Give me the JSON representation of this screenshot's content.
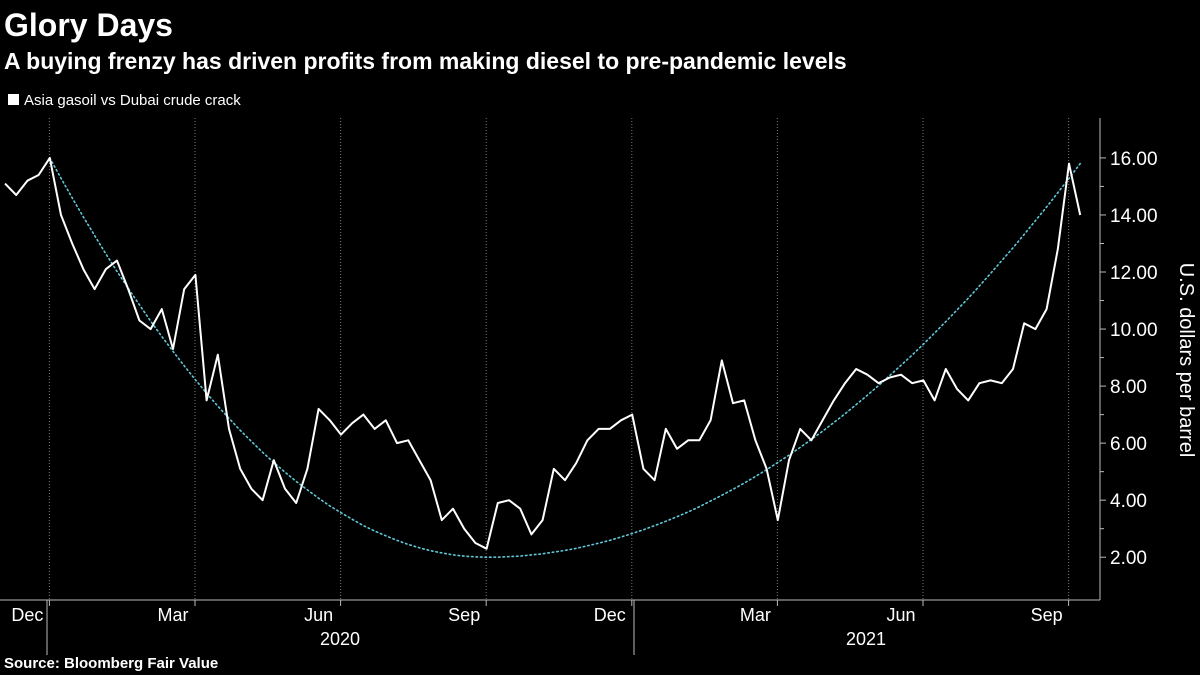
{
  "chart_data": {
    "type": "line",
    "title": "Glory Days",
    "subtitle": "A buying frenzy has driven profits from making diesel to pre-pandemic levels",
    "y_label": "U.S. dollars per barrel",
    "source": "Source: Bloomberg Fair Value",
    "categories": [
      null,
      null,
      "Dec",
      null,
      null,
      null,
      null,
      null,
      null,
      null,
      null,
      null,
      null,
      null,
      null,
      "Mar",
      null,
      null,
      null,
      null,
      null,
      null,
      null,
      null,
      null,
      null,
      null,
      null,
      "Jun",
      null,
      null,
      null,
      null,
      null,
      null,
      null,
      null,
      null,
      null,
      null,
      null,
      "Sep",
      null,
      null,
      null,
      null,
      null,
      null,
      null,
      null,
      null,
      null,
      null,
      null,
      "Dec",
      null,
      null,
      null,
      null,
      null,
      null,
      null,
      null,
      null,
      null,
      null,
      null,
      "Mar",
      null,
      null,
      null,
      null,
      null,
      null,
      null,
      null,
      null,
      null,
      null,
      null,
      "Jun",
      null,
      null,
      null,
      null,
      null,
      null,
      null,
      null,
      null,
      null,
      null,
      null,
      "Sep",
      null,
      null,
      null
    ],
    "x_groups": [
      "2020",
      "2021"
    ],
    "series": [
      {
        "name": "Asia gasoil vs Dubai crude crack",
        "color": "#ffffff",
        "style": "solid",
        "values": [
          15.1,
          14.7,
          15.2,
          15.4,
          16.0,
          14.0,
          13.0,
          12.1,
          11.4,
          12.1,
          12.4,
          11.4,
          10.3,
          10.0,
          10.7,
          9.3,
          11.4,
          11.9,
          7.5,
          9.1,
          6.5,
          5.1,
          4.4,
          4.0,
          5.4,
          4.4,
          3.9,
          5.1,
          7.2,
          6.8,
          6.3,
          6.7,
          7.0,
          6.5,
          6.8,
          6.0,
          6.1,
          5.4,
          4.7,
          3.3,
          3.7,
          3.0,
          2.5,
          2.3,
          3.9,
          4.0,
          3.7,
          2.8,
          3.3,
          5.1,
          4.7,
          5.3,
          6.1,
          6.5,
          6.5,
          6.8,
          7.0,
          5.1,
          4.7,
          6.5,
          5.8,
          6.1,
          6.1,
          6.8,
          8.9,
          7.4,
          7.5,
          6.1,
          5.1,
          3.3,
          5.4,
          6.5,
          6.1,
          6.8,
          7.5,
          8.1,
          8.6,
          8.4,
          8.1,
          8.3,
          8.4,
          8.1,
          8.2,
          7.5,
          8.6,
          7.9,
          7.5,
          8.1,
          8.2,
          8.1,
          8.6,
          10.2,
          10.0,
          10.7,
          12.8,
          15.8,
          14.0
        ]
      },
      {
        "color": "#5fc8d8",
        "style": "dotted",
        "values": [
          null,
          null,
          null,
          null,
          16,
          15.29,
          14.6,
          13.93,
          13.28,
          12.64,
          12.02,
          11.43,
          10.85,
          10.28,
          9.74,
          9.22,
          8.71,
          8.22,
          7.75,
          7.3,
          6.87,
          6.45,
          6.06,
          5.68,
          5.32,
          4.98,
          4.66,
          4.36,
          4.07,
          3.8,
          3.56,
          3.33,
          3.11,
          2.92,
          2.75,
          2.59,
          2.45,
          2.33,
          2.23,
          2.15,
          2.08,
          2.04,
          2.01,
          2,
          2,
          2.02,
          2.04,
          2.08,
          2.12,
          2.18,
          2.24,
          2.31,
          2.4,
          2.49,
          2.59,
          2.71,
          2.83,
          2.96,
          3.11,
          3.26,
          3.42,
          3.59,
          3.77,
          3.97,
          4.17,
          4.38,
          4.6,
          4.83,
          5.07,
          5.32,
          5.58,
          5.85,
          6.13,
          6.42,
          6.72,
          7.03,
          7.35,
          7.68,
          8.02,
          8.37,
          8.73,
          9.09,
          9.47,
          9.86,
          10.26,
          10.67,
          11.08,
          11.51,
          11.95,
          12.4,
          12.85,
          13.32,
          13.8,
          14.28,
          14.78,
          15.28,
          15.8
        ]
      }
    ],
    "ylim": [
      0.5,
      17.4
    ],
    "yticks": [
      {
        "value": 2,
        "label": "2.00"
      },
      {
        "value": 4,
        "label": "4.00"
      },
      {
        "value": 6,
        "label": "6.00"
      },
      {
        "value": 8,
        "label": "8.00"
      },
      {
        "value": 10,
        "label": "10.00"
      },
      {
        "value": 12,
        "label": "12.00"
      },
      {
        "value": 14,
        "label": "14.00"
      },
      {
        "value": 16,
        "label": "16.00"
      }
    ],
    "grid": "x"
  }
}
